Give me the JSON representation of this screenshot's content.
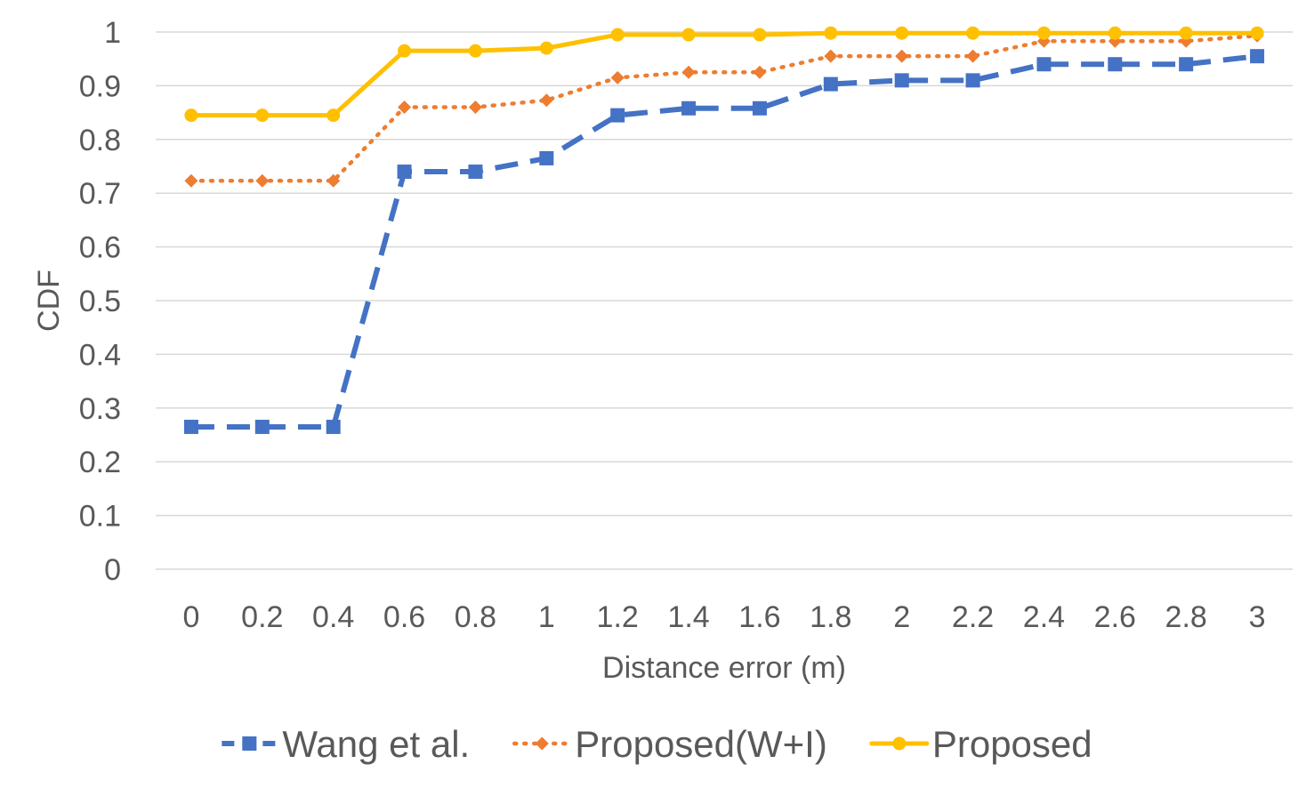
{
  "chart_data": {
    "type": "line",
    "title": "",
    "xlabel": "Distance error (m)",
    "ylabel": "CDF",
    "categories": [
      "0",
      "0.2",
      "0.4",
      "0.6",
      "0.8",
      "1",
      "1.2",
      "1.4",
      "1.6",
      "1.8",
      "2",
      "2.2",
      "2.4",
      "2.6",
      "2.8",
      "3"
    ],
    "y_ticks": [
      "0",
      "0.1",
      "0.2",
      "0.3",
      "0.4",
      "0.5",
      "0.6",
      "0.7",
      "0.8",
      "0.9",
      "1"
    ],
    "ylim": [
      0,
      1
    ],
    "grid": "horizontal",
    "legend_position": "bottom",
    "series": [
      {
        "name": "Wang et al.",
        "color": "#4472C4",
        "line_style": "dashed",
        "marker": "square",
        "values": [
          0.265,
          0.265,
          0.265,
          0.74,
          0.74,
          0.765,
          0.845,
          0.858,
          0.858,
          0.903,
          0.91,
          0.91,
          0.94,
          0.94,
          0.94,
          0.955
        ]
      },
      {
        "name": "Proposed(W+I)",
        "color": "#ED7D31",
        "line_style": "dotted",
        "marker": "diamond",
        "values": [
          0.723,
          0.723,
          0.723,
          0.86,
          0.86,
          0.873,
          0.915,
          0.925,
          0.925,
          0.955,
          0.955,
          0.955,
          0.983,
          0.983,
          0.983,
          0.993
        ]
      },
      {
        "name": "Proposed",
        "color": "#FFC000",
        "line_style": "solid",
        "marker": "circle",
        "values": [
          0.845,
          0.845,
          0.845,
          0.965,
          0.965,
          0.97,
          0.995,
          0.995,
          0.995,
          0.998,
          0.998,
          0.998,
          0.998,
          0.998,
          0.998,
          0.998
        ]
      }
    ]
  }
}
